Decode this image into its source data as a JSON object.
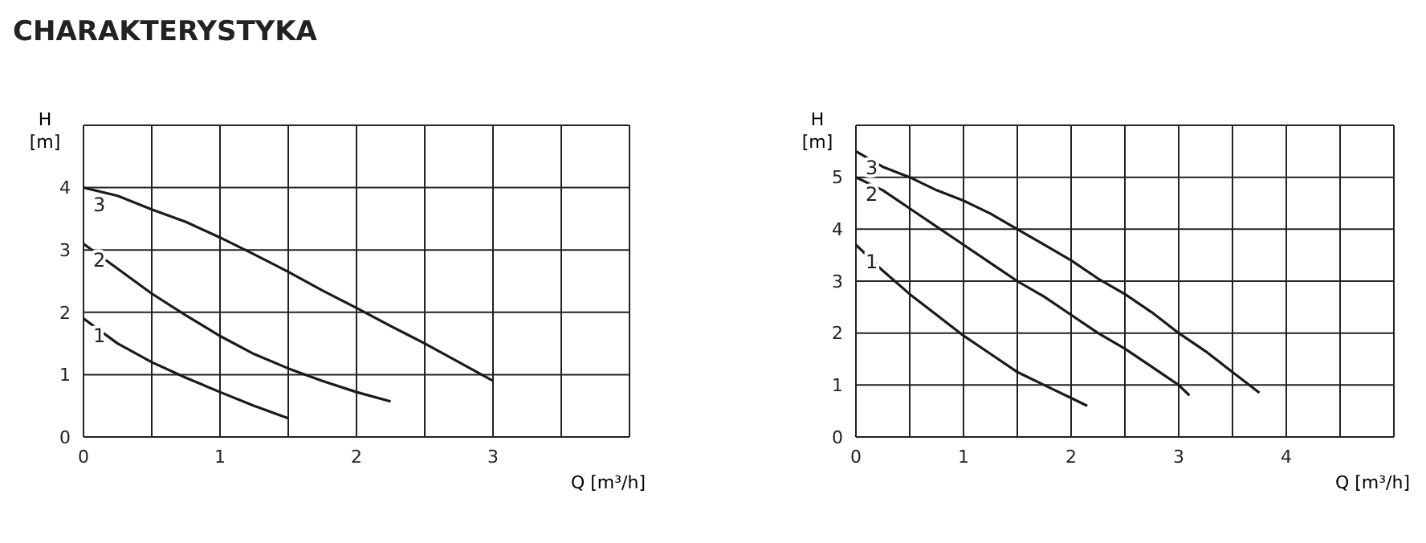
{
  "chart_data": [
    {
      "type": "line",
      "title": "CHARAKTERYSTYKA",
      "xlabel": "Q [m³/h]",
      "ylabel": "H [m]",
      "xlim": [
        0,
        4
      ],
      "ylim": [
        0,
        5
      ],
      "xticks": [
        0,
        {
          "value": 0.5,
          "label": null
        },
        1,
        {
          "value": 1.5,
          "label": null
        },
        2,
        {
          "value": 2.5,
          "label": null
        },
        3,
        {
          "value": 3.5,
          "label": null
        },
        {
          "value": 4,
          "label": null
        }
      ],
      "yticks": [
        0,
        1,
        2,
        3,
        4,
        {
          "value": 5,
          "label": null
        }
      ],
      "grid": true,
      "legend": false,
      "marker": "none",
      "line_style": "solid",
      "series": [
        {
          "name": "1",
          "color": "#1a1a1a",
          "x": [
            0,
            0.25,
            0.5,
            0.75,
            1,
            1.25,
            1.5
          ],
          "values": [
            1.9,
            1.5,
            1.2,
            0.95,
            0.72,
            0.5,
            0.3
          ]
        },
        {
          "name": "2",
          "color": "#1a1a1a",
          "x": [
            0,
            0.25,
            0.5,
            0.75,
            1,
            1.25,
            1.5,
            1.75,
            2,
            2.25
          ],
          "values": [
            3.1,
            2.7,
            2.3,
            1.95,
            1.62,
            1.33,
            1.1,
            0.9,
            0.72,
            0.57
          ]
        },
        {
          "name": "3",
          "color": "#1a1a1a",
          "x": [
            0,
            0.25,
            0.5,
            0.75,
            1,
            1.25,
            1.5,
            1.75,
            2,
            2.25,
            2.5,
            2.75,
            3
          ],
          "values": [
            4.0,
            3.87,
            3.65,
            3.45,
            3.2,
            2.93,
            2.65,
            2.35,
            2.07,
            1.78,
            1.5,
            1.2,
            0.9
          ]
        }
      ]
    },
    {
      "type": "line",
      "xlabel": "Q [m³/h]",
      "ylabel": "H [m]",
      "xlim": [
        0,
        5
      ],
      "ylim": [
        0,
        6
      ],
      "xticks": [
        0,
        {
          "value": 0.5,
          "label": null
        },
        1,
        {
          "value": 1.5,
          "label": null
        },
        2,
        {
          "value": 2.5,
          "label": null
        },
        3,
        {
          "value": 3.5,
          "label": null
        },
        4,
        {
          "value": 4.5,
          "label": null
        },
        {
          "value": 5,
          "label": null
        }
      ],
      "yticks": [
        0,
        1,
        2,
        3,
        4,
        5,
        {
          "value": 6,
          "label": null
        }
      ],
      "grid": true,
      "legend": false,
      "marker": "none",
      "line_style": "solid",
      "series": [
        {
          "name": "1",
          "color": "#1a1a1a",
          "x": [
            0,
            0.25,
            0.5,
            0.75,
            1,
            1.25,
            1.5,
            1.75,
            2,
            2.15
          ],
          "values": [
            3.7,
            3.2,
            2.75,
            2.35,
            1.95,
            1.6,
            1.25,
            1.0,
            0.75,
            0.6
          ]
        },
        {
          "name": "2",
          "color": "#1a1a1a",
          "x": [
            0,
            0.25,
            0.5,
            0.75,
            1,
            1.25,
            1.5,
            1.75,
            2,
            2.25,
            2.5,
            2.75,
            3,
            3.1
          ],
          "values": [
            5.0,
            4.75,
            4.4,
            4.05,
            3.7,
            3.35,
            3.0,
            2.7,
            2.35,
            2.0,
            1.7,
            1.35,
            1.0,
            0.8
          ]
        },
        {
          "name": "3",
          "color": "#1a1a1a",
          "x": [
            0,
            0.25,
            0.5,
            0.75,
            1,
            1.25,
            1.5,
            1.75,
            2,
            2.25,
            2.5,
            2.75,
            3,
            3.25,
            3.5,
            3.75
          ],
          "values": [
            5.5,
            5.2,
            5.0,
            4.75,
            4.55,
            4.3,
            4.0,
            3.7,
            3.4,
            3.05,
            2.75,
            2.4,
            2.0,
            1.65,
            1.25,
            0.85
          ]
        }
      ]
    }
  ]
}
